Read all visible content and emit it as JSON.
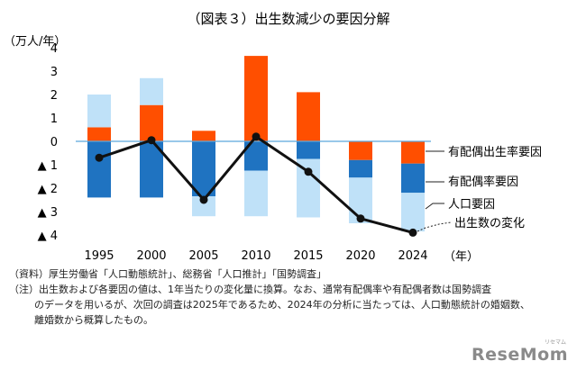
{
  "chart_data": {
    "type": "bar",
    "title": "（図表３）出生数減少の要因分解",
    "unit_label": "（万人/年）",
    "x_unit_label": "（年）",
    "categories": [
      "1995",
      "2000",
      "2005",
      "2010",
      "2015",
      "2020",
      "2024"
    ],
    "ylim": [
      -4,
      4
    ],
    "y_ticks": [
      {
        "value": 4,
        "label": "4"
      },
      {
        "value": 3,
        "label": "3"
      },
      {
        "value": 2,
        "label": "2"
      },
      {
        "value": 1,
        "label": "1"
      },
      {
        "value": 0,
        "label": "0"
      },
      {
        "value": -1,
        "label": "▲ 1"
      },
      {
        "value": -2,
        "label": "▲ 2"
      },
      {
        "value": -3,
        "label": "▲ 3"
      },
      {
        "value": -4,
        "label": "▲ 4"
      }
    ],
    "series": [
      {
        "name": "有配偶出生率要因",
        "kind": "bar",
        "color": "#ff4f00",
        "values": [
          0.6,
          1.55,
          0.45,
          3.65,
          2.1,
          -0.8,
          -0.95
        ]
      },
      {
        "name": "有配偶率要因",
        "kind": "bar",
        "color": "#1f73c1",
        "values": [
          -2.4,
          -2.4,
          -2.35,
          -1.25,
          -0.75,
          -0.75,
          -1.25
        ]
      },
      {
        "name": "人口要因",
        "kind": "bar",
        "color": "#bfe1f8",
        "values": [
          1.4,
          1.15,
          -0.85,
          -1.95,
          -2.5,
          -1.95,
          -1.65
        ]
      },
      {
        "name": "出生数の変化",
        "kind": "line",
        "color": "#111111",
        "values": [
          -0.7,
          0.05,
          -2.5,
          0.2,
          -1.3,
          -3.3,
          -3.9
        ]
      }
    ],
    "grid": false,
    "legend": "right, annotated labels"
  },
  "notes": [
    "（資料）厚生労働省「人口動態統計」、総務省「人口推計」「国勢調査」",
    "（注）出生数および各要因の値は、1年当たりの変化量に換算。なお、通常有配偶率や有配偶者数は国勢調査",
    "のデータを用いるが、次回の調査は2025年であるため、2024年の分析に当たっては、人口動態統計の婚姻数、",
    "離婚数から概算したもの。"
  ],
  "logo": {
    "text": "ReseMom",
    "sub": "リセマム"
  }
}
